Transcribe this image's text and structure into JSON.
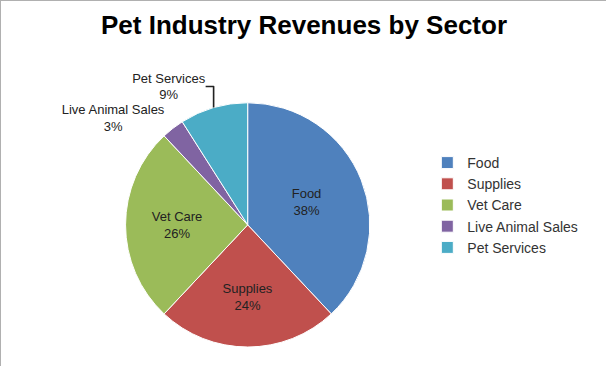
{
  "chart_data": {
    "type": "pie",
    "title": "Pet Industry Revenues by Sector",
    "categories": [
      "Food",
      "Supplies",
      "Vet Care",
      "Live Animal Sales",
      "Pet Services"
    ],
    "values": [
      38,
      24,
      26,
      3,
      9
    ],
    "value_labels": [
      "38%",
      "24%",
      "26%",
      "3%",
      "9%"
    ],
    "colors": [
      "#4f81bd",
      "#c0504d",
      "#9bbb59",
      "#8064a2",
      "#4bacc6"
    ],
    "data_labels": true,
    "legend": "right"
  }
}
